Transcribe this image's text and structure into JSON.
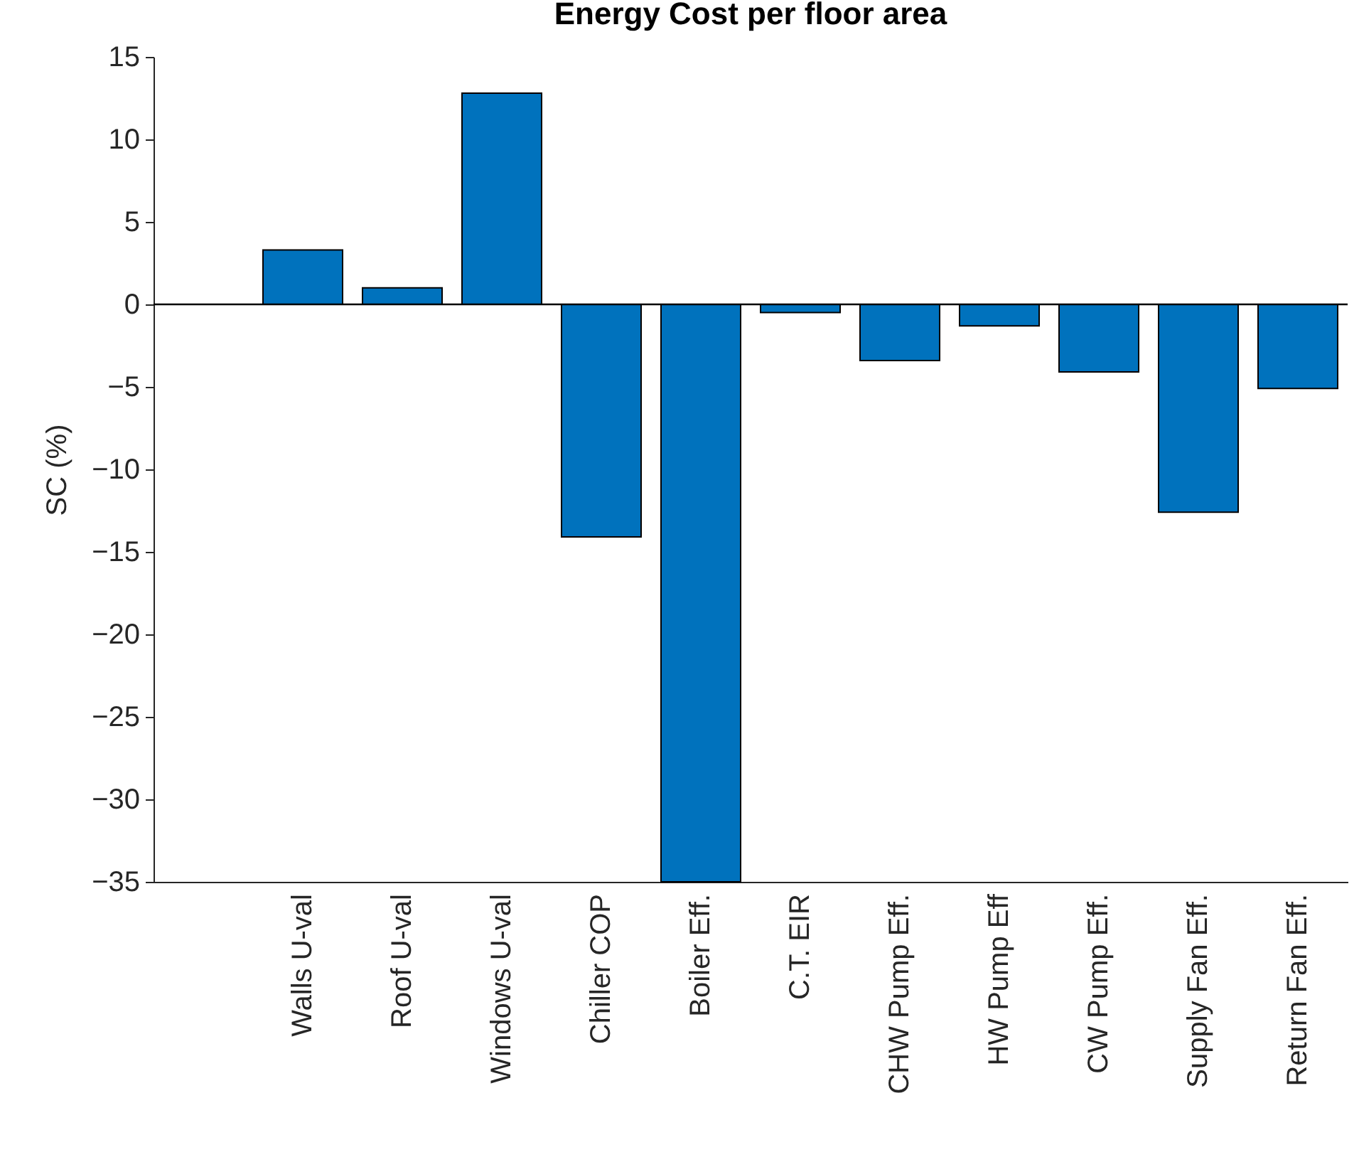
{
  "chart_data": {
    "type": "bar",
    "title": "Energy Cost per floor area",
    "ylabel": "SC (%)",
    "categories": [
      null,
      "Walls U-val",
      "Roof U-val",
      "Windows U-val",
      "Chiller COP",
      "Boiler Eff.",
      "C.T. EIR",
      "CHW Pump Eff.",
      "HW Pump Eff",
      "CW Pump Eff.",
      "Supply Fan Eff.",
      "Return Fan Eff."
    ],
    "values": [
      null,
      3.3,
      1.0,
      12.8,
      -14.1,
      -35,
      -0.5,
      -3.4,
      -1.3,
      -4.1,
      -12.6,
      -5.1
    ],
    "color": "#0072bd",
    "ylim": [
      -35,
      15
    ],
    "yticks": [
      -35,
      -30,
      -25,
      -20,
      -15,
      -10,
      -5,
      0,
      5,
      10,
      15
    ],
    "grid": false,
    "ref_lines": [
      {
        "axis": "y",
        "value": 0,
        "color": "#000000"
      }
    ]
  }
}
